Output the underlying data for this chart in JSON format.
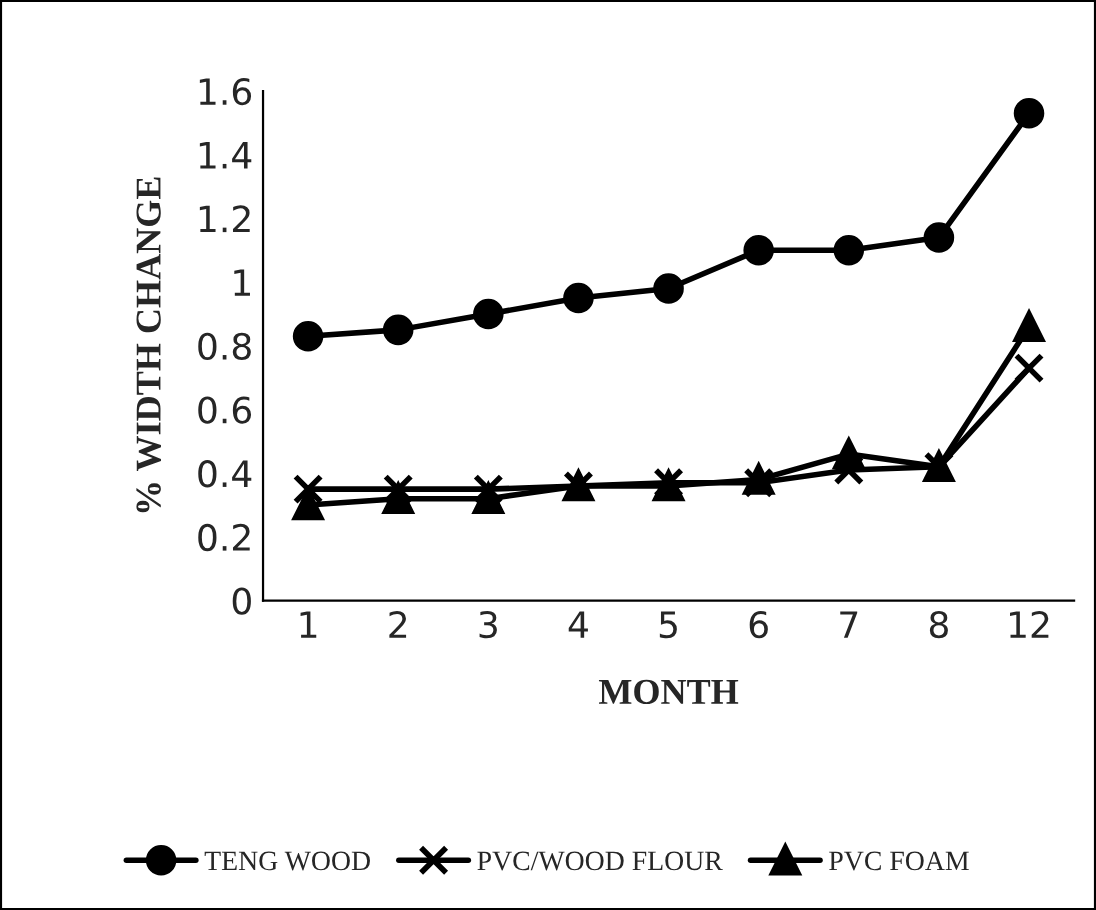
{
  "chart_data": {
    "type": "line",
    "xlabel": "MONTH",
    "ylabel": "% WIDTH CHANGE",
    "categories": [
      "1",
      "2",
      "3",
      "4",
      "5",
      "6",
      "7",
      "8",
      "12"
    ],
    "series": [
      {
        "name": "TENG WOOD",
        "color": "#000000",
        "marker": "circle",
        "values": [
          0.83,
          0.85,
          0.9,
          0.95,
          0.98,
          1.1,
          1.1,
          1.14,
          1.53
        ]
      },
      {
        "name": "PVC/WOOD FLOUR",
        "color": "#000000",
        "marker": "cross",
        "values": [
          0.35,
          0.35,
          0.35,
          0.36,
          0.37,
          0.37,
          0.41,
          0.42,
          0.73
        ]
      },
      {
        "name": "PVC FOAM",
        "color": "#000000",
        "marker": "triangle",
        "values": [
          0.3,
          0.32,
          0.32,
          0.36,
          0.36,
          0.38,
          0.46,
          0.42,
          0.86
        ]
      }
    ],
    "ylim": [
      0,
      1.6
    ],
    "yticks": [
      0,
      0.2,
      0.4,
      0.6,
      0.8,
      1,
      1.2,
      1.4,
      1.6
    ],
    "grid": false,
    "legend": "bottom",
    "line_style": "solid"
  }
}
